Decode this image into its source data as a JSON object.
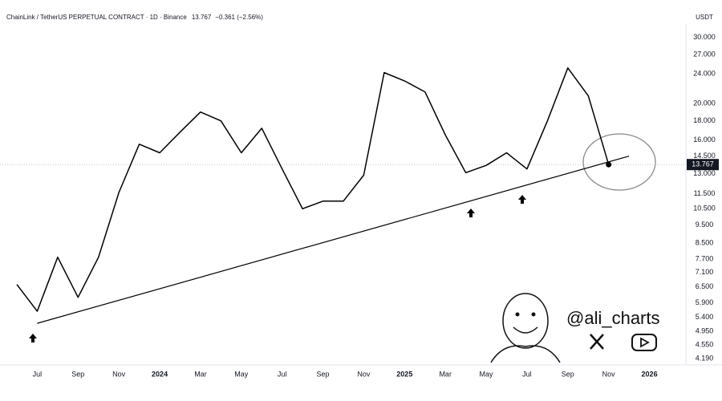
{
  "chart_data": {
    "type": "line",
    "title": "ChainLink / TetherUS PERPETUAL CONTRACT · 1D · Binance",
    "change": "−0.361 (−2.56%)",
    "currency": "USDT",
    "watermark": "@ali_charts",
    "log_scale": true,
    "grid": false,
    "color": "#000000",
    "x": [
      "2023-06",
      "2023-07",
      "2023-08",
      "2023-09",
      "2023-10",
      "2023-11",
      "2023-12",
      "2024-01",
      "2024-02",
      "2024-03",
      "2024-04",
      "2024-05",
      "2024-06",
      "2024-07",
      "2024-08",
      "2024-09",
      "2024-10",
      "2024-11",
      "2024-12",
      "2025-01",
      "2025-02",
      "2025-03",
      "2025-04",
      "2025-05",
      "2025-06",
      "2025-07",
      "2025-08",
      "2025-09",
      "2025-10",
      "2025-11"
    ],
    "values": [
      6.6,
      5.6,
      7.8,
      6.1,
      7.8,
      11.6,
      15.6,
      14.8,
      16.8,
      19.0,
      18.0,
      14.8,
      17.2,
      13.4,
      10.5,
      11.0,
      11.0,
      12.9,
      24.2,
      23.0,
      21.5,
      16.5,
      13.1,
      13.7,
      14.8,
      13.4,
      18.0,
      24.9,
      21.0,
      13.767
    ],
    "trendline": {
      "x": [
        "2023-07",
        "2025-12"
      ],
      "values": [
        5.2,
        14.5
      ]
    },
    "xlim": [
      "2023-06",
      "2026-02"
    ],
    "xticks": [
      {
        "value": "2023-07",
        "label": "Jul"
      },
      {
        "value": "2023-09",
        "label": "Sep"
      },
      {
        "value": "2023-11",
        "label": "Nov"
      },
      {
        "value": "2024-01",
        "label": "2024"
      },
      {
        "value": "2024-03",
        "label": "Mar"
      },
      {
        "value": "2024-05",
        "label": "May"
      },
      {
        "value": "2024-07",
        "label": "Jul"
      },
      {
        "value": "2024-09",
        "label": "Sep"
      },
      {
        "value": "2024-11",
        "label": "Nov"
      },
      {
        "value": "2025-01",
        "label": "2025"
      },
      {
        "value": "2025-03",
        "label": "Mar"
      },
      {
        "value": "2025-05",
        "label": "May"
      },
      {
        "value": "2025-07",
        "label": "Jul"
      },
      {
        "value": "2025-09",
        "label": "Sep"
      },
      {
        "value": "2025-11",
        "label": "Nov"
      },
      {
        "value": "2026-01",
        "label": "2026"
      }
    ],
    "ylim": [
      3.97,
      31.8
    ],
    "yticks": [
      {
        "value": 30,
        "label": "30.000"
      },
      {
        "value": 27,
        "label": "27.000"
      },
      {
        "value": 24,
        "label": "24.000"
      },
      {
        "value": 20,
        "label": "20.000"
      },
      {
        "value": 18,
        "label": "18.000"
      },
      {
        "value": 16,
        "label": "16.000"
      },
      {
        "value": 14.5,
        "label": "14.500"
      },
      {
        "value": 13,
        "label": "13.000"
      },
      {
        "value": 11.5,
        "label": "11.500"
      },
      {
        "value": 10.5,
        "label": "10.500"
      },
      {
        "value": 9.5,
        "label": "9.500"
      },
      {
        "value": 8.5,
        "label": "8.500"
      },
      {
        "value": 7.7,
        "label": "7.700"
      },
      {
        "value": 7.1,
        "label": "7.100"
      },
      {
        "value": 6.5,
        "label": "6.500"
      },
      {
        "value": 5.9,
        "label": "5.900"
      },
      {
        "value": 5.4,
        "label": "5.400"
      },
      {
        "value": 4.95,
        "label": "4.950"
      },
      {
        "value": 4.55,
        "label": "4.550"
      },
      {
        "value": 4.19,
        "label": "4.190"
      }
    ]
  }
}
